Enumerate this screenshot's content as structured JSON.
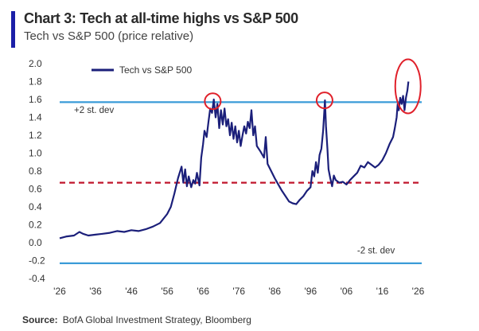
{
  "header": {
    "title": "Chart 3: Tech at all-time highs vs S&P 500",
    "subtitle": "Tech vs S&P 500 (price relative)"
  },
  "source": {
    "label": "Source:",
    "text": "BofA Global Investment Strategy, Bloomberg"
  },
  "chart_data": {
    "type": "line",
    "title": "Chart 3: Tech at all-time highs vs S&P 500",
    "subtitle": "Tech vs S&P 500 (price relative)",
    "xlabel": "",
    "ylabel": "",
    "xlim": [
      1926,
      2027
    ],
    "ylim": [
      -0.4,
      2.0
    ],
    "x_ticks": [
      1926,
      1936,
      1946,
      1956,
      1966,
      1976,
      1986,
      1996,
      2006,
      2016,
      2026
    ],
    "x_tick_labels": [
      "'26",
      "'36",
      "'46",
      "'56",
      "'66",
      "'76",
      "'86",
      "'96",
      "'06",
      "'16",
      "'26"
    ],
    "y_ticks": [
      2.0,
      1.8,
      1.6,
      1.4,
      1.2,
      1.0,
      0.8,
      0.6,
      0.4,
      0.2,
      0.0,
      -0.2,
      -0.4
    ],
    "y_tick_labels": [
      "2.0",
      "1.8",
      "1.6",
      "1.4",
      "1.2",
      "1.0",
      "0.8",
      "0.6",
      "0.4",
      "0.2",
      "0.0",
      "-0.2",
      "-0.4"
    ],
    "legend": {
      "label": "Tech vs  S&P 500",
      "position": "top-left"
    },
    "colors": {
      "series": "#1b1f7a",
      "std_line": "#3a9bd8",
      "mean_line": "#c0162c",
      "highlight": "#e0202a"
    },
    "reference_lines": [
      {
        "name": "+2 st. dev",
        "value": 1.57,
        "style": "solid"
      },
      {
        "name": "mean",
        "value": 0.67,
        "style": "dashed"
      },
      {
        "name": "-2 st. dev",
        "value": -0.23,
        "style": "solid"
      }
    ],
    "annotations": [
      {
        "text": "+2 st. dev",
        "x": 1930,
        "y": 1.45
      },
      {
        "text": "-2 st. dev",
        "x": 2009,
        "y": -0.12
      }
    ],
    "highlights": [
      {
        "x": 1968.7,
        "y": 1.58
      },
      {
        "x": 1999.9,
        "y": 1.59
      },
      {
        "x": 2022.5,
        "y": 1.64
      }
    ],
    "series": [
      {
        "name": "Tech vs  S&P 500",
        "x": [
          1926,
          1928,
          1930,
          1931.5,
          1932.5,
          1934,
          1936,
          1938,
          1940,
          1942,
          1944,
          1946,
          1948,
          1950,
          1952,
          1954,
          1956,
          1957,
          1958,
          1959,
          1960,
          1960.5,
          1961,
          1961.5,
          1962,
          1962.7,
          1963.3,
          1963.8,
          1964.3,
          1965,
          1965.5,
          1966,
          1966.4,
          1967,
          1967.5,
          1968,
          1968.5,
          1969,
          1969.5,
          1970,
          1970.5,
          1971,
          1971.5,
          1972,
          1972.5,
          1973,
          1973.5,
          1974,
          1974.5,
          1975,
          1975.5,
          1976,
          1976.5,
          1977,
          1977.5,
          1978,
          1978.5,
          1979,
          1979.5,
          1980,
          1980.5,
          1981,
          1982,
          1983,
          1983.5,
          1984,
          1985,
          1986,
          1987,
          1988,
          1989,
          1990,
          1991,
          1992,
          1993,
          1994,
          1995,
          1996,
          1996.5,
          1997,
          1997.5,
          1998,
          1998.5,
          1999,
          1999.5,
          2000,
          2000.3,
          2000.7,
          2001,
          2001.5,
          2002,
          2002.5,
          2003,
          2004,
          2005,
          2006,
          2007,
          2008,
          2009,
          2010,
          2011,
          2012,
          2013,
          2014,
          2015,
          2016,
          2017,
          2018,
          2019,
          2019.5,
          2020,
          2020.3,
          2020.6,
          2021,
          2021.4,
          2021.8,
          2022.2,
          2022.6,
          2023,
          2023.3
        ],
        "values": [
          0.05,
          0.07,
          0.08,
          0.12,
          0.1,
          0.08,
          0.09,
          0.1,
          0.11,
          0.13,
          0.12,
          0.14,
          0.13,
          0.15,
          0.18,
          0.22,
          0.32,
          0.4,
          0.55,
          0.72,
          0.85,
          0.67,
          0.82,
          0.63,
          0.74,
          0.62,
          0.7,
          0.66,
          0.78,
          0.64,
          0.95,
          1.1,
          1.25,
          1.18,
          1.35,
          1.5,
          1.45,
          1.6,
          1.4,
          1.55,
          1.28,
          1.48,
          1.32,
          1.5,
          1.3,
          1.38,
          1.2,
          1.34,
          1.16,
          1.3,
          1.12,
          1.25,
          1.08,
          1.2,
          1.3,
          1.22,
          1.35,
          1.28,
          1.48,
          1.2,
          1.3,
          1.08,
          1.02,
          0.95,
          1.18,
          0.88,
          0.8,
          0.72,
          0.65,
          0.58,
          0.52,
          0.46,
          0.44,
          0.43,
          0.48,
          0.52,
          0.58,
          0.62,
          0.8,
          0.74,
          0.9,
          0.78,
          0.98,
          1.05,
          1.25,
          1.59,
          1.3,
          1.05,
          0.82,
          0.72,
          0.63,
          0.75,
          0.7,
          0.67,
          0.68,
          0.65,
          0.7,
          0.74,
          0.78,
          0.86,
          0.84,
          0.9,
          0.87,
          0.84,
          0.87,
          0.92,
          1.0,
          1.1,
          1.18,
          1.28,
          1.4,
          1.55,
          1.48,
          1.62,
          1.55,
          1.64,
          1.48,
          1.62,
          1.7,
          1.8
        ]
      }
    ]
  }
}
